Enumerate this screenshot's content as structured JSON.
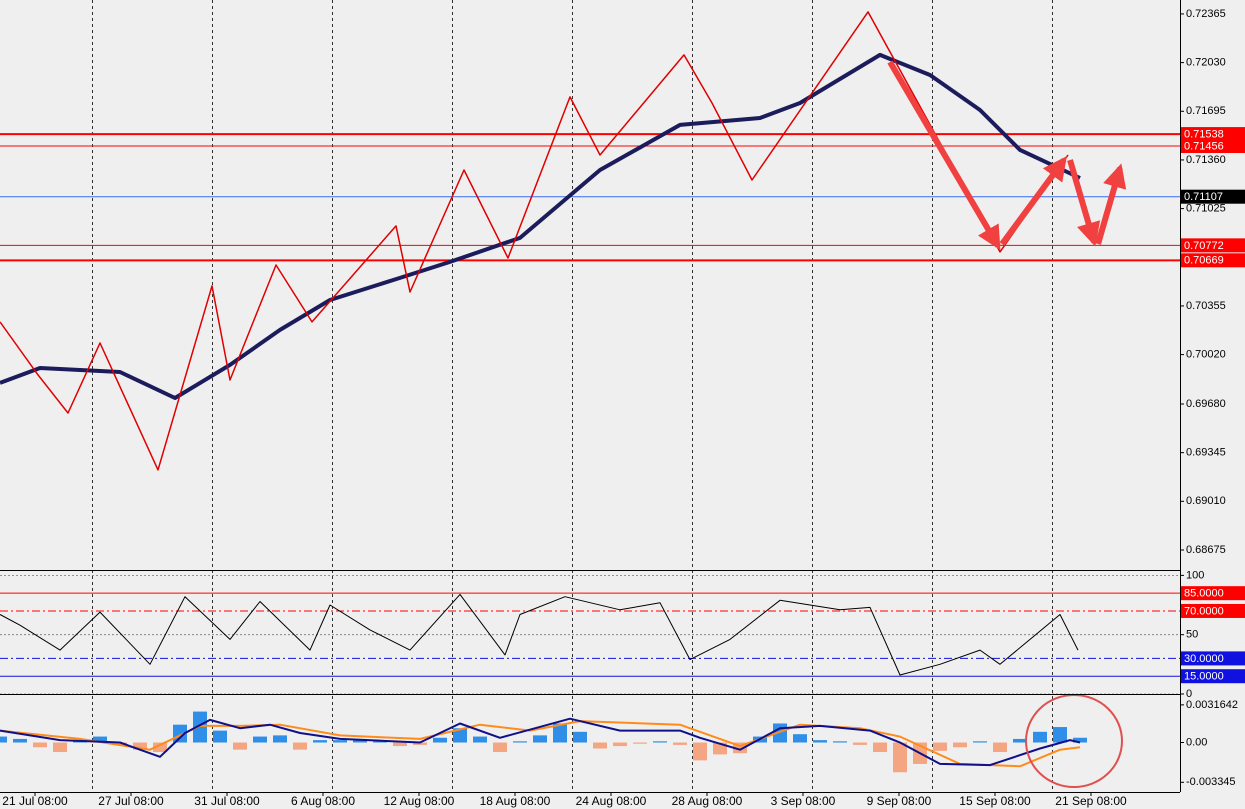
{
  "chart_data": [
    {
      "type": "line",
      "xlim": [
        0,
        295
      ],
      "ylim": [
        0.68551,
        0.72461
      ],
      "yticks": [
        0.72365,
        {
          "value": 0.7203,
          "label": "0.72030"
        },
        0.71695,
        {
          "value": 0.7136,
          "label": "0.71360"
        },
        0.71025,
        0.70355,
        {
          "value": 0.7002,
          "label": "0.70020"
        },
        {
          "value": 0.6968,
          "label": "0.69680"
        },
        0.69345,
        {
          "value": 0.6901,
          "label": "0.69010"
        },
        {
          "value": 0.68675,
          "label": "0.68675"
        }
      ],
      "levels": [
        {
          "value": 0.71538,
          "color": "#ff0000"
        },
        {
          "value": 0.71456,
          "color": "#ff0000"
        },
        {
          "value": 0.70772,
          "color": "#ff0000"
        },
        {
          "value": 0.70669,
          "color": "#ff0000"
        }
      ],
      "current_price": 0.71107,
      "current_price_color": "#3a6cf0",
      "series": [
        {
          "color": "#1c1c5c",
          "line_width": 4,
          "x": [
            0,
            10,
            30,
            43.75,
            57.5,
            70,
            82.5,
            100,
            112.5,
            130,
            150,
            170,
            190,
            200,
            220,
            232.5,
            245,
            255,
            270
          ],
          "values": [
            0.69825,
            0.69928,
            0.699,
            0.69721,
            0.69949,
            0.7019,
            0.70396,
            0.70548,
            0.70658,
            0.70823,
            0.71291,
            0.71601,
            0.71649,
            0.71752,
            0.72083,
            0.71945,
            0.71704,
            0.71429,
            0.71236
          ]
        },
        {
          "color": "#e00000",
          "line_width": 1.5,
          "x": [
            0,
            9.5,
            17,
            25,
            39.5,
            53,
            57.5,
            69,
            78,
            99,
            102.5,
            116,
            127,
            142.5,
            150,
            171,
            178,
            188,
            217,
            250,
            267
          ],
          "values": [
            0.70245,
            0.6988,
            0.69618,
            0.701,
            0.69226,
            0.70493,
            0.69845,
            0.70637,
            0.70245,
            0.70906,
            0.70451,
            0.71291,
            0.70685,
            0.71794,
            0.71394,
            0.72083,
            0.71752,
            0.71222,
            0.72379,
            0.70727,
            0.71394
          ]
        }
      ]
    },
    {
      "type": "line",
      "xlim": [
        0,
        295
      ],
      "ylim": [
        0,
        102
      ],
      "yticks": [
        100,
        50,
        0
      ],
      "levels": [
        {
          "value": 85,
          "label": "85.0000",
          "color": "#ff0000"
        },
        {
          "value": 70,
          "label": "70.0000",
          "color": "#ff0000",
          "style": "dashdot"
        },
        {
          "value": 30,
          "label": "30.0000",
          "color": "#1010e0",
          "style": "dashdot"
        },
        {
          "value": 15,
          "label": "15.0000",
          "color": "#1010e0"
        }
      ],
      "series": [
        {
          "color": "#000000",
          "line_width": 1,
          "x": [
            0,
            5,
            15,
            25,
            37.5,
            46.25,
            57.5,
            65,
            77.5,
            82.5,
            92.5,
            102.5,
            115,
            126.25,
            130,
            141.25,
            155,
            165,
            172.5,
            182.5,
            195,
            210,
            217.5,
            225,
            235,
            245,
            250,
            265,
            269.5
          ],
          "values": [
            67,
            58,
            37,
            69,
            25,
            82,
            46,
            78,
            37,
            75,
            54,
            37,
            84,
            33,
            67,
            82,
            71,
            77,
            29,
            46,
            79,
            71,
            73,
            16,
            25,
            37,
            25,
            67,
            37
          ]
        }
      ]
    },
    {
      "type": "bar",
      "xlim": [
        0,
        295
      ],
      "ylim": [
        -0.00416,
        0.00391
      ],
      "yticks": [
        0.0031642,
        {
          "value": 0,
          "label": "0.00"
        },
        {
          "value": -0.003345,
          "label": "-0.003345"
        }
      ],
      "xticks": [
        {
          "value": 8.75,
          "label": "21 Jul 08:00"
        },
        {
          "value": 32.75,
          "label": "27 Jul 08:00"
        },
        {
          "value": 56.75,
          "label": "31 Jul 08:00"
        },
        {
          "value": 80.75,
          "label": "6 Aug 08:00"
        },
        {
          "value": 104.75,
          "label": "12 Aug 08:00"
        },
        {
          "value": 128.75,
          "label": "18 Aug 08:00"
        },
        {
          "value": 152.75,
          "label": "24 Aug 08:00"
        },
        {
          "value": 176.75,
          "label": "28 Aug 08:00"
        },
        {
          "value": 200.75,
          "label": "3 Sep 08:00"
        },
        {
          "value": 224.75,
          "label": "9 Sep 08:00"
        },
        {
          "value": 248.75,
          "label": "15 Sep 08:00"
        },
        {
          "value": 272.75,
          "label": "21 Sep 08:00"
        }
      ],
      "bars": {
        "positive_color": "#2f8fe8",
        "negative_color": "#f4a582",
        "x": [
          0,
          5,
          10,
          15,
          20,
          25,
          30,
          35,
          40,
          45,
          50,
          55,
          60,
          65,
          70,
          75,
          80,
          85,
          90,
          95,
          100,
          105,
          110,
          115,
          120,
          125,
          130,
          135,
          140,
          145,
          150,
          155,
          160,
          165,
          170,
          175,
          180,
          185,
          190,
          195,
          200,
          205,
          210,
          215,
          220,
          225,
          230,
          235,
          240,
          245,
          250,
          255,
          260,
          265,
          270
        ],
        "values": [
          0.0005,
          0.0003,
          -0.0004,
          -0.0008,
          0.0001,
          0.0005,
          -0.0002,
          -0.0006,
          -0.0008,
          0.0015,
          0.0026,
          0.001,
          -0.0006,
          0.0005,
          0.0006,
          -0.0006,
          0.0002,
          0.0002,
          0.0003,
          0.0001,
          -0.0003,
          -0.0002,
          0.0004,
          0.0012,
          0.0005,
          -0.0008,
          0.0001,
          0.0006,
          0.0016,
          0.0009,
          -0.0005,
          -0.0003,
          -0.0001,
          0.0001,
          -0.0002,
          -0.0015,
          -0.001,
          -0.0009,
          0.0005,
          0.0016,
          0.0007,
          0.0002,
          0.0001,
          -0.0002,
          -0.0008,
          -0.0025,
          -0.0018,
          -0.0007,
          -0.0004,
          0.0001,
          -0.0008,
          0.0003,
          0.0009,
          0.0013,
          0.0004
        ]
      },
      "series": [
        {
          "color": "#ff8c1a",
          "line_width": 2,
          "x": [
            0,
            20,
            37.5,
            50,
            60,
            70,
            85,
            105,
            120,
            132.5,
            145,
            170,
            185,
            200,
            215,
            225,
            240,
            255,
            265,
            270
          ],
          "values": [
            0.001,
            0.0003,
            -0.0006,
            0.0014,
            0.0014,
            0.0015,
            0.0006,
            0.0003,
            0.0015,
            0.001,
            0.0018,
            0.0015,
            -0.0003,
            0.0015,
            0.0012,
            0.0005,
            -0.0018,
            -0.002,
            -0.0006,
            -0.0004
          ]
        },
        {
          "color": "#10108a",
          "line_width": 2,
          "x": [
            0,
            15,
            30,
            40,
            46.25,
            52.5,
            60,
            67.5,
            75,
            85,
            105,
            115,
            125,
            142.5,
            155,
            170,
            175,
            185,
            195,
            205,
            217.5,
            225,
            235,
            247.5,
            260,
            267.5,
            270
          ],
          "values": [
            0.001,
            0.0002,
            0,
            -0.0012,
            0.0008,
            0.0019,
            0.0012,
            0.0015,
            0.0008,
            0.0003,
            0,
            0.0016,
            0.0004,
            0.002,
            0.001,
            0.001,
            0.0004,
            -0.0006,
            0.0012,
            0.0014,
            0.001,
            0,
            -0.0018,
            -0.0019,
            -0.0005,
            0.0002,
            0
          ]
        }
      ]
    }
  ]
}
